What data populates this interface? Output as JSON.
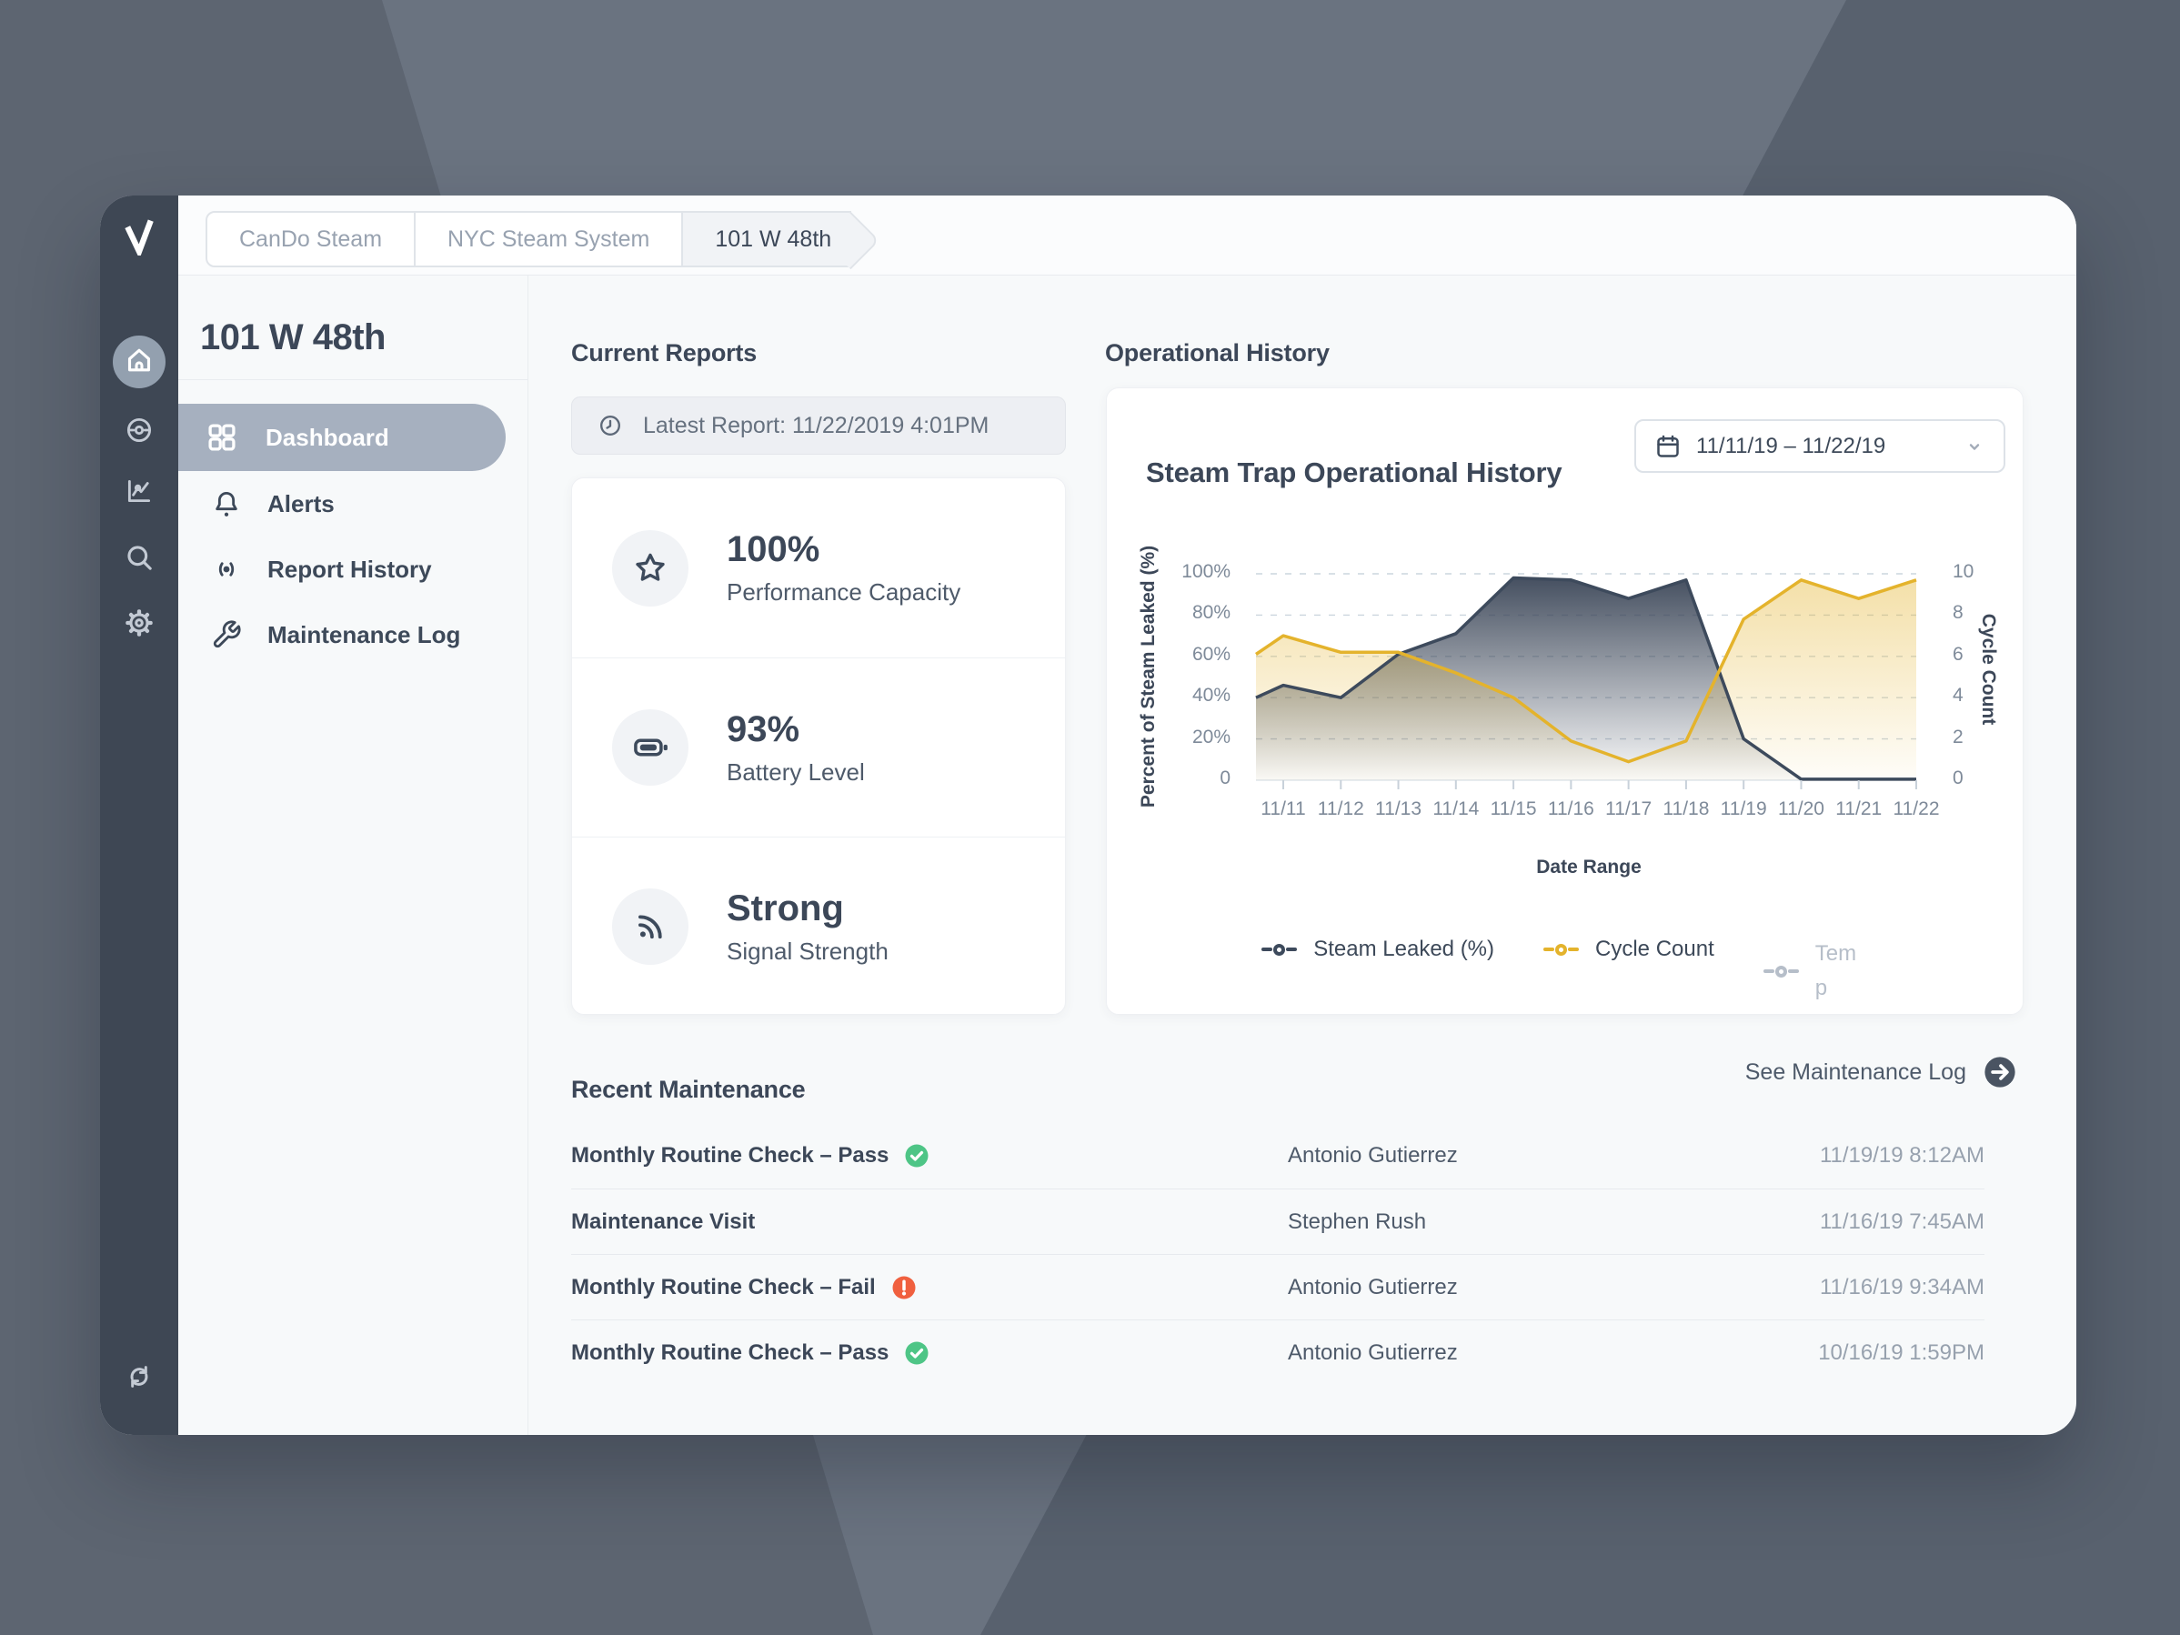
{
  "breadcrumb": {
    "items": [
      {
        "label": "CanDo Steam",
        "active": false
      },
      {
        "label": "NYC Steam System",
        "active": false
      },
      {
        "label": "101 W 48th",
        "active": true
      }
    ]
  },
  "sidebar": {
    "icons": [
      "logo",
      "home",
      "gauge",
      "line-chart",
      "search",
      "settings",
      "refresh"
    ],
    "active_icon": "home"
  },
  "nav": {
    "title": "101 W 48th",
    "items": [
      {
        "label": "Dashboard",
        "icon": "grid",
        "active": true
      },
      {
        "label": "Alerts",
        "icon": "bell",
        "active": false
      },
      {
        "label": "Report History",
        "icon": "broadcast",
        "active": false
      },
      {
        "label": "Maintenance Log",
        "icon": "wrench",
        "active": false
      }
    ]
  },
  "current_reports": {
    "heading": "Current Reports",
    "latest_report": "Latest Report: 11/22/2019 4:01PM",
    "stats": [
      {
        "icon": "star",
        "value": "100%",
        "label": "Performance Capacity"
      },
      {
        "icon": "battery",
        "value": "93%",
        "label": "Battery Level"
      },
      {
        "icon": "signal",
        "value": "Strong",
        "label": "Signal Strength"
      }
    ]
  },
  "operational_history": {
    "heading": "Operational History",
    "card_title": "Steam Trap Operational History",
    "date_range": "11/11/19 – 11/22/19"
  },
  "chart_data": {
    "type": "area",
    "title": "Steam Trap Operational History",
    "xlabel": "Date Range",
    "ylabel_left": "Percent of Steam Leaked (%)",
    "ylabel_right": "Cycle Count",
    "categories": [
      "11/11",
      "11/12",
      "11/13",
      "11/14",
      "11/15",
      "11/16",
      "11/17",
      "11/18",
      "11/19",
      "11/20",
      "11/21",
      "11/22"
    ],
    "left_axis": {
      "min": 0,
      "max": 100,
      "ticks": [
        "0",
        "20%",
        "40%",
        "60%",
        "80%",
        "100%"
      ]
    },
    "right_axis": {
      "min": 0,
      "max": 10,
      "ticks": [
        "0",
        "2",
        "4",
        "6",
        "8",
        "10"
      ]
    },
    "grid": "horizontal-dashed",
    "legend_position": "bottom",
    "series": [
      {
        "name": "Steam Leaked (%)",
        "axis": "left",
        "color": "#3d4a5c",
        "fill": "gradient-dark",
        "edge_value": 40,
        "values": [
          46,
          40,
          61,
          71,
          98,
          97,
          88,
          97,
          20,
          0.5,
          0.5,
          0.5
        ]
      },
      {
        "name": "Cycle Count",
        "axis": "right",
        "color": "#e4b32c",
        "fill": "gradient-gold",
        "edge_value": 6.1,
        "values": [
          7,
          6.2,
          6.2,
          5.2,
          4,
          1.9,
          0.9,
          1.9,
          7.8,
          9.7,
          8.8,
          9.7
        ]
      },
      {
        "name": "Temp",
        "axis": "right",
        "color": "#b6bec9",
        "disabled": true,
        "values": []
      }
    ]
  },
  "recent_maintenance": {
    "heading": "Recent Maintenance",
    "link": "See Maintenance Log",
    "rows": [
      {
        "name": "Monthly Routine Check – Pass",
        "status": "pass",
        "person": "Antonio Gutierrez",
        "date": "11/19/19 8:12AM"
      },
      {
        "name": "Maintenance Visit",
        "status": "none",
        "person": "Stephen Rush",
        "date": "11/16/19 7:45AM"
      },
      {
        "name": "Monthly Routine Check – Fail",
        "status": "fail",
        "person": "Antonio Gutierrez",
        "date": "11/16/19 9:34AM"
      },
      {
        "name": "Monthly Routine Check – Pass",
        "status": "pass",
        "person": "Antonio Gutierrez",
        "date": "10/16/19 1:59PM"
      }
    ]
  },
  "colors": {
    "accent_dark": "#3d4a5c",
    "accent_gold": "#e4b32c",
    "status_pass": "#4ec586",
    "status_fail": "#f0603f",
    "sidebar": "#3e4754",
    "active_pill": "#a6b0bf",
    "background": "#6a7380"
  }
}
